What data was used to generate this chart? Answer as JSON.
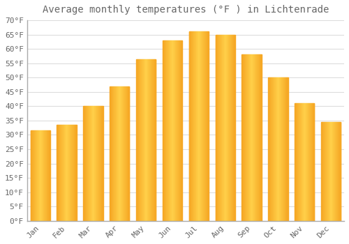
{
  "title": "Average monthly temperatures (°F ) in Lichtenrade",
  "months": [
    "Jan",
    "Feb",
    "Mar",
    "Apr",
    "May",
    "Jun",
    "Jul",
    "Aug",
    "Sep",
    "Oct",
    "Nov",
    "Dec"
  ],
  "values": [
    31.5,
    33.5,
    40.0,
    47.0,
    56.5,
    63.0,
    66.0,
    65.0,
    58.0,
    50.0,
    41.0,
    34.5
  ],
  "bar_color_center": "#FFD04A",
  "bar_color_edge": "#F5A623",
  "ylim": [
    0,
    70
  ],
  "yticks": [
    0,
    5,
    10,
    15,
    20,
    25,
    30,
    35,
    40,
    45,
    50,
    55,
    60,
    65,
    70
  ],
  "ytick_labels": [
    "0°F",
    "5°F",
    "10°F",
    "15°F",
    "20°F",
    "25°F",
    "30°F",
    "35°F",
    "40°F",
    "45°F",
    "50°F",
    "55°F",
    "60°F",
    "65°F",
    "70°F"
  ],
  "background_color": "#FFFFFF",
  "grid_color": "#DDDDDD",
  "title_fontsize": 10,
  "tick_fontsize": 8,
  "font_color": "#666666",
  "bar_width": 0.75,
  "left_spine_color": "#AAAAAA"
}
